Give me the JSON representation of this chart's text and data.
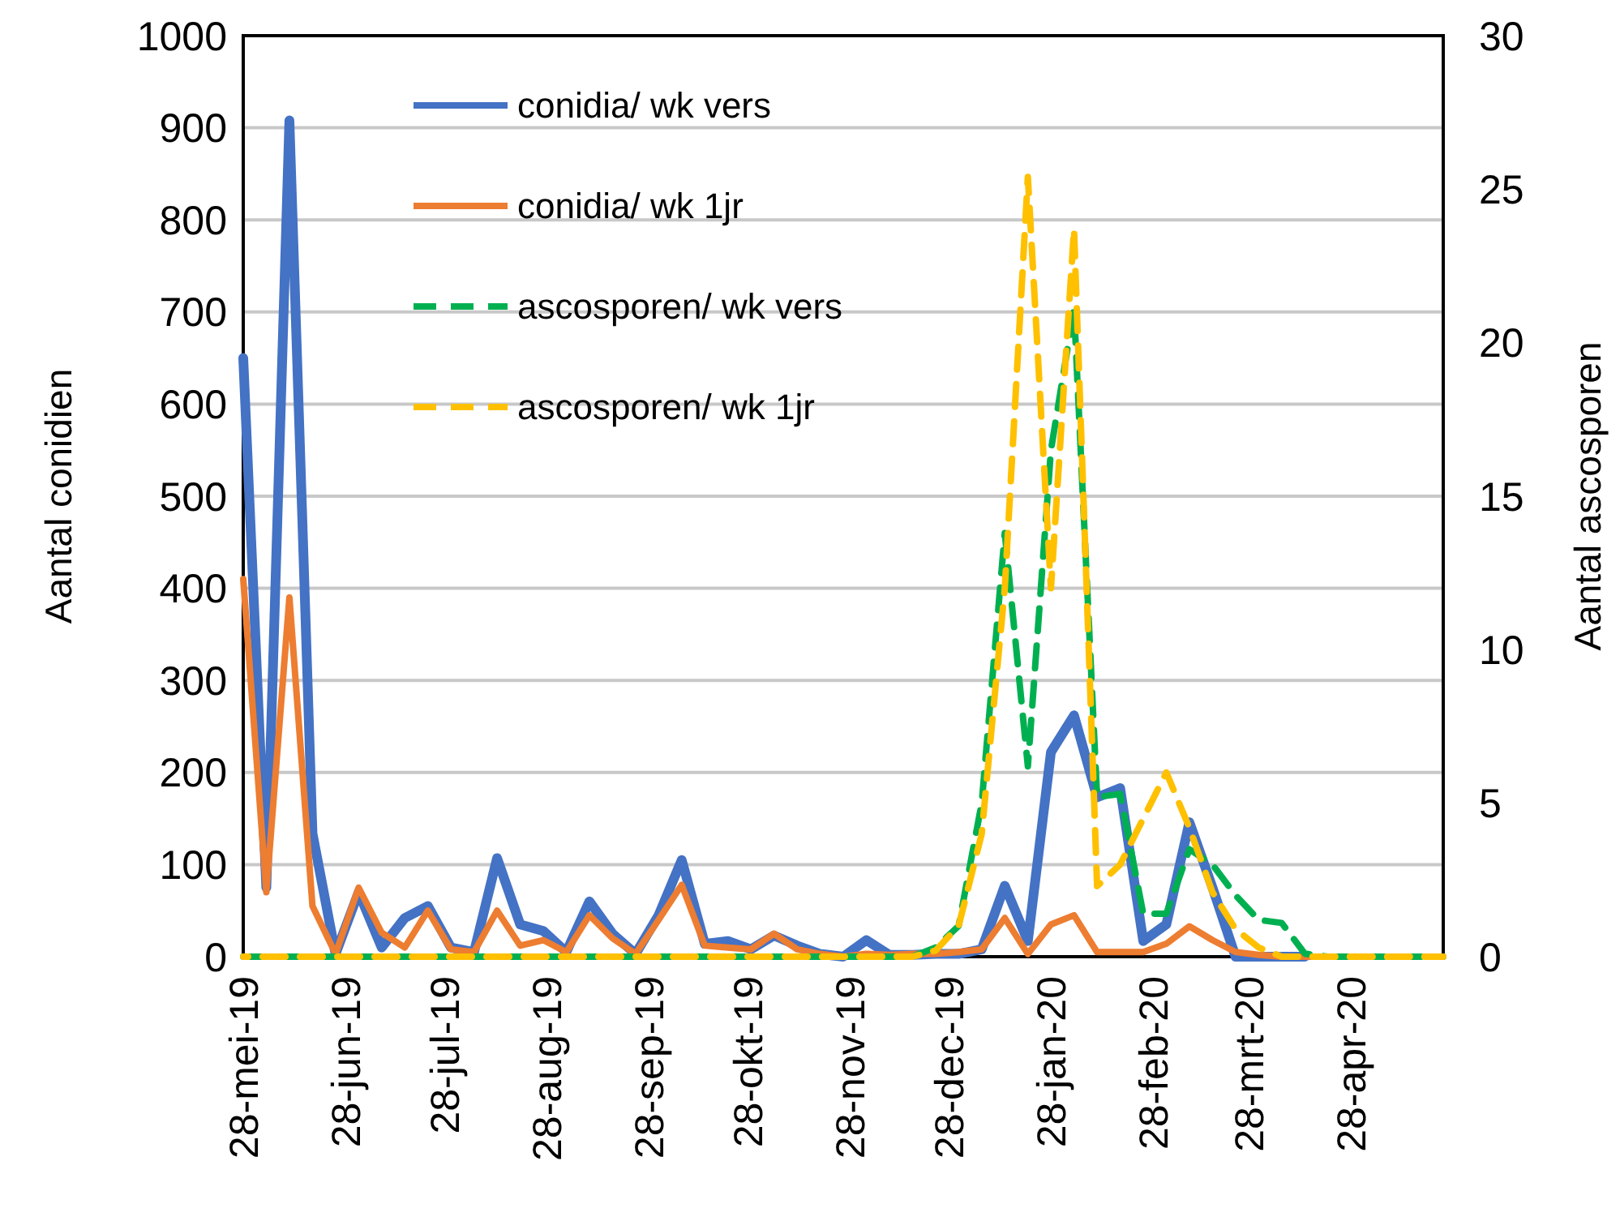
{
  "chart_data": {
    "type": "line",
    "x": [
      "2019-05-28",
      "2019-06-04",
      "2019-06-11",
      "2019-06-18",
      "2019-06-25",
      "2019-07-02",
      "2019-07-09",
      "2019-07-16",
      "2019-07-23",
      "2019-07-30",
      "2019-08-06",
      "2019-08-13",
      "2019-08-20",
      "2019-08-27",
      "2019-09-03",
      "2019-09-10",
      "2019-09-17",
      "2019-09-24",
      "2019-10-01",
      "2019-10-08",
      "2019-10-15",
      "2019-10-22",
      "2019-10-29",
      "2019-11-05",
      "2019-11-12",
      "2019-11-19",
      "2019-11-26",
      "2019-12-03",
      "2019-12-10",
      "2019-12-17",
      "2019-12-24",
      "2019-12-31",
      "2020-01-07",
      "2020-01-14",
      "2020-01-21",
      "2020-01-28",
      "2020-02-04",
      "2020-02-11",
      "2020-02-18",
      "2020-02-25",
      "2020-03-03",
      "2020-03-10",
      "2020-03-17",
      "2020-03-24",
      "2020-03-31",
      "2020-04-07",
      "2020-04-14",
      "2020-04-21",
      "2020-04-28",
      "2020-05-05",
      "2020-05-12",
      "2020-05-19",
      "2020-05-26"
    ],
    "series": [
      {
        "name": "conidia/ wk vers",
        "color": "#4472c4",
        "values": [
          650,
          75,
          908,
          134,
          3,
          70,
          10,
          42,
          55,
          10,
          5,
          107,
          35,
          28,
          5,
          60,
          25,
          3,
          45,
          105,
          14,
          17,
          8,
          23,
          12,
          3,
          0,
          18,
          2,
          2,
          3,
          3,
          8,
          77,
          17,
          222,
          262,
          173,
          183,
          17,
          35,
          146,
          75,
          0,
          0,
          0,
          0,
          null,
          null,
          null,
          null,
          null,
          null
        ]
      },
      {
        "name": "conidia/ wk 1jr",
        "color": "#ed7d31",
        "values": [
          410,
          70,
          390,
          55,
          3,
          75,
          26,
          10,
          50,
          8,
          5,
          50,
          12,
          18,
          5,
          45,
          20,
          3,
          40,
          78,
          12,
          10,
          8,
          25,
          8,
          3,
          0,
          3,
          2,
          3,
          3,
          5,
          8,
          42,
          3,
          35,
          45,
          5,
          5,
          5,
          14,
          33,
          18,
          5,
          2,
          0,
          0,
          0,
          0,
          null,
          null,
          null,
          null
        ]
      },
      {
        "name": "ascosporen/ wk vers",
        "color": "#00b050",
        "axis": "y2",
        "line_style": "dashed",
        "values": [
          0,
          0,
          0,
          0,
          0,
          0,
          0,
          0,
          0,
          0,
          0,
          0,
          0,
          0,
          0,
          0,
          0,
          0,
          0,
          0,
          0,
          0,
          0,
          0,
          0,
          0,
          0,
          0,
          0,
          0,
          0.3,
          1,
          5,
          13.8,
          6.2,
          16.5,
          21.1,
          5.2,
          5.3,
          1.4,
          1.4,
          3.5,
          3,
          2,
          1.2,
          1.1,
          0.1,
          0,
          0,
          0,
          0,
          0,
          0
        ]
      },
      {
        "name": "ascosporen/ wk 1jr",
        "color": "#ffc000",
        "axis": "y2",
        "line_style": "dashed",
        "values": [
          0,
          0,
          0,
          0,
          0,
          0,
          0,
          0,
          0,
          0,
          0,
          0,
          0,
          0,
          0,
          0,
          0,
          0,
          0,
          0,
          0,
          0,
          0,
          0,
          0,
          0,
          0,
          0,
          0,
          0,
          0.2,
          1,
          4,
          12,
          25.4,
          12,
          23.7,
          2.3,
          3,
          4.5,
          6,
          4.2,
          2.1,
          0.9,
          0.3,
          0,
          0,
          0,
          0,
          0,
          0,
          0,
          0
        ]
      }
    ],
    "ylabel": "Aantal conidien",
    "y2label": "Aantal ascosporen",
    "xlim": [
      "2019-05-28",
      "2020-05-26"
    ],
    "xticks": [
      {
        "value": "2019-05-28",
        "label": "28-mei-19"
      },
      {
        "value": "2019-06-28",
        "label": "28-jun-19"
      },
      {
        "value": "2019-07-28",
        "label": "28-jul-19"
      },
      {
        "value": "2019-08-28",
        "label": "28-aug-19"
      },
      {
        "value": "2019-09-28",
        "label": "28-sep-19"
      },
      {
        "value": "2019-10-28",
        "label": "28-okt-19"
      },
      {
        "value": "2019-11-28",
        "label": "28-nov-19"
      },
      {
        "value": "2019-12-28",
        "label": "28-dec-19"
      },
      {
        "value": "2020-01-28",
        "label": "28-jan-20"
      },
      {
        "value": "2020-02-28",
        "label": "28-feb-20"
      },
      {
        "value": "2020-03-28",
        "label": "28-mrt-20"
      },
      {
        "value": "2020-04-28",
        "label": "28-apr-20"
      }
    ],
    "ylim": [
      0,
      1000
    ],
    "yticks": [
      0,
      100,
      200,
      300,
      400,
      500,
      600,
      700,
      800,
      900,
      1000
    ],
    "y2lim": [
      0,
      30
    ],
    "y2ticks": [
      0,
      5,
      10,
      15,
      20,
      25,
      30
    ],
    "grid": "y",
    "legend": "top left",
    "marker": "none",
    "line_style": "solid"
  }
}
